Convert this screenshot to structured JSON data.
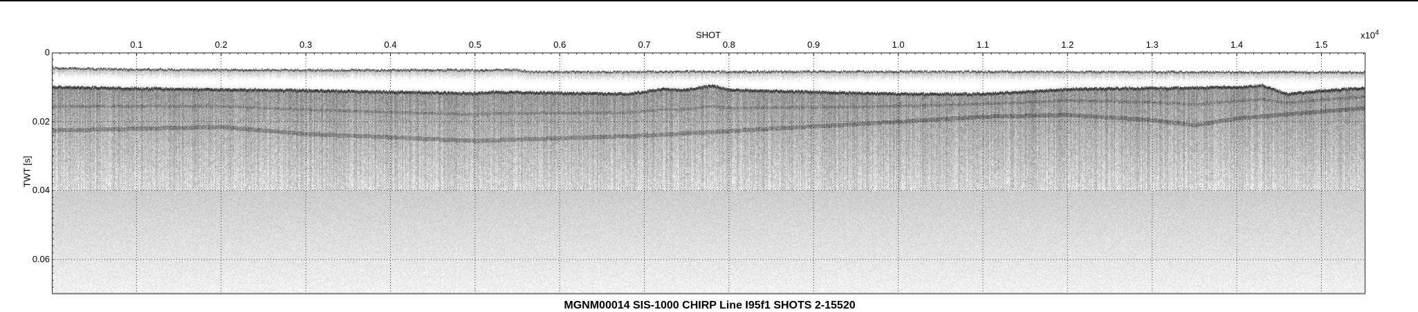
{
  "chart_data": {
    "type": "heatmap",
    "title": "MGNM00014 SIS-1000 CHIRP Line I95f1 SHOTS 2-15520",
    "xlabel": "SHOT",
    "ylabel": "TWT [s]",
    "x_exponent_label": "x10",
    "x_exponent_power": "4",
    "xlim": [
      0,
      15520
    ],
    "ylim": [
      0,
      0.07
    ],
    "y_inverted": true,
    "colormap": "grayscale",
    "grid": true,
    "grid_style": "dotted",
    "x_ticks": [
      1000,
      2000,
      3000,
      4000,
      5000,
      6000,
      7000,
      8000,
      9000,
      10000,
      11000,
      12000,
      13000,
      14000,
      15000
    ],
    "x_tick_labels": [
      "0.1",
      "0.2",
      "0.3",
      "0.4",
      "0.5",
      "0.6",
      "0.7",
      "0.8",
      "0.9",
      "1.0",
      "1.1",
      "1.2",
      "1.3",
      "1.4",
      "1.5"
    ],
    "y_ticks": [
      0,
      0.02,
      0.04,
      0.06
    ],
    "y_tick_labels": [
      "0",
      "0.02",
      "0.04",
      "0.06"
    ],
    "horizons": {
      "seafloor": [
        [
          0,
          0.0042
        ],
        [
          1000,
          0.0046
        ],
        [
          3000,
          0.0048
        ],
        [
          5000,
          0.0048
        ],
        [
          5500,
          0.0047
        ],
        [
          5650,
          0.0053
        ],
        [
          8000,
          0.0052
        ],
        [
          10000,
          0.0052
        ],
        [
          13000,
          0.0053
        ],
        [
          15520,
          0.0054
        ]
      ],
      "strong_reflector": [
        [
          0,
          0.0098
        ],
        [
          1000,
          0.0102
        ],
        [
          3000,
          0.0108
        ],
        [
          5000,
          0.0116
        ],
        [
          5200,
          0.0112
        ],
        [
          6800,
          0.0118
        ],
        [
          7200,
          0.0104
        ],
        [
          7500,
          0.0106
        ],
        [
          7800,
          0.0094
        ],
        [
          8000,
          0.0106
        ],
        [
          9000,
          0.0112
        ],
        [
          10000,
          0.0118
        ],
        [
          11000,
          0.0118
        ],
        [
          12000,
          0.0104
        ],
        [
          14000,
          0.0098
        ],
        [
          14300,
          0.0094
        ],
        [
          14600,
          0.0118
        ],
        [
          15000,
          0.0108
        ],
        [
          15520,
          0.01
        ]
      ],
      "subbottom_reflector": [
        [
          0,
          0.0225
        ],
        [
          2000,
          0.0215
        ],
        [
          3000,
          0.0235
        ],
        [
          5000,
          0.0255
        ],
        [
          7000,
          0.024
        ],
        [
          10000,
          0.02
        ],
        [
          11000,
          0.0185
        ],
        [
          12000,
          0.018
        ],
        [
          13000,
          0.0195
        ],
        [
          13500,
          0.021
        ],
        [
          14000,
          0.019
        ],
        [
          15520,
          0.016
        ]
      ]
    }
  }
}
